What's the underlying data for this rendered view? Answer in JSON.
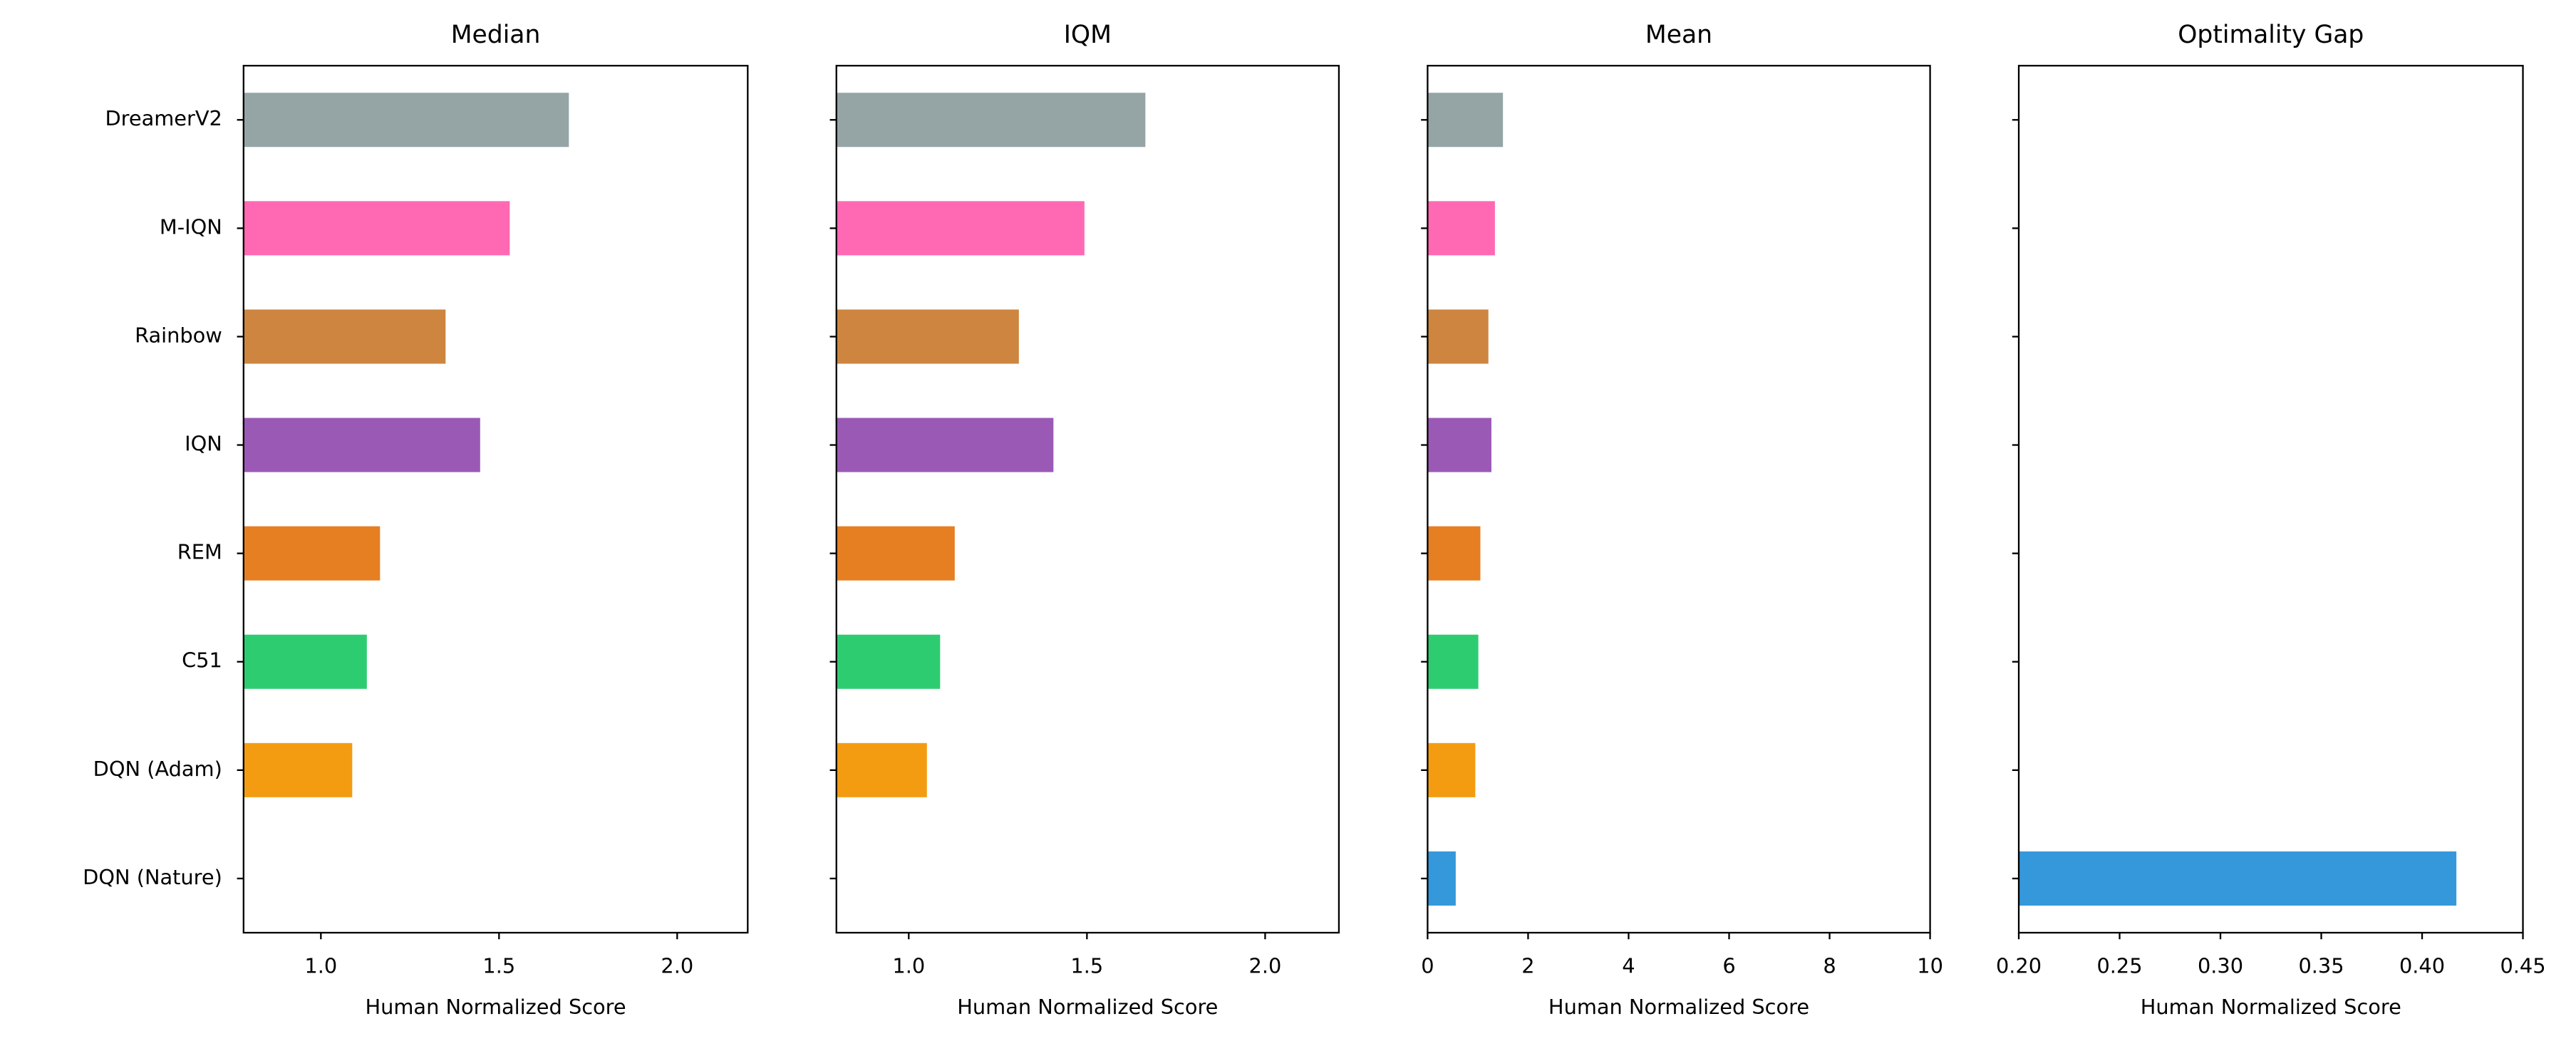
{
  "chart_data": [
    {
      "type": "bar",
      "orientation": "horizontal",
      "title": "Median",
      "xlabel": "Human Normalized Score",
      "categories": [
        "DreamerV2",
        "M-IQN",
        "Rainbow",
        "IQN",
        "REM",
        "C51",
        "DQN (Adam)",
        "DQN (Nature)"
      ],
      "values": [
        1.696,
        1.53,
        1.35,
        1.447,
        1.166,
        1.129,
        1.088,
        null
      ],
      "colors": [
        "#95a5a6",
        "#ff69b4",
        "#cd853f",
        "#9b59b6",
        "#e67e22",
        "#2ecc71",
        "#f39c12",
        "#3498db"
      ],
      "xlim": [
        0.783,
        2.198
      ],
      "xticks": [
        {
          "value": 1,
          "label": "1.0"
        },
        1.5,
        {
          "value": 2,
          "label": "2.0"
        }
      ]
    },
    {
      "type": "bar",
      "orientation": "horizontal",
      "title": "IQM",
      "xlabel": "Human Normalized Score",
      "values": [
        1.664,
        1.493,
        1.309,
        1.406,
        1.129,
        1.088,
        1.051,
        null
      ],
      "colors": [
        "#95a5a6",
        "#ff69b4",
        "#cd853f",
        "#9b59b6",
        "#e67e22",
        "#2ecc71",
        "#f39c12",
        "#3498db"
      ],
      "xlim": [
        0.797,
        2.207
      ],
      "xticks": [
        {
          "value": 1,
          "label": "1.0"
        },
        1.5,
        {
          "value": 2,
          "label": "2.0"
        }
      ]
    },
    {
      "type": "bar",
      "orientation": "horizontal",
      "title": "Mean",
      "xlabel": "Human Normalized Score",
      "values": [
        1.5,
        1.34,
        1.21,
        1.27,
        1.05,
        1.01,
        0.95,
        0.56
      ],
      "colors": [
        "#95a5a6",
        "#ff69b4",
        "#cd853f",
        "#9b59b6",
        "#e67e22",
        "#2ecc71",
        "#f39c12",
        "#3498db"
      ],
      "xlim": [
        0,
        10
      ],
      "xticks": [
        0,
        2,
        4,
        6,
        8,
        10
      ]
    },
    {
      "type": "bar",
      "orientation": "horizontal",
      "title": "Optimality Gap",
      "xlabel": "Human Normalized Score",
      "values": [
        null,
        null,
        null,
        null,
        null,
        null,
        null,
        0.417
      ],
      "colors": [
        "#95a5a6",
        "#ff69b4",
        "#cd853f",
        "#9b59b6",
        "#e67e22",
        "#2ecc71",
        "#f39c12",
        "#3498db"
      ],
      "xlim": [
        0.2,
        0.45
      ],
      "xticks": [
        {
          "value": 0.2,
          "label": "0.20"
        },
        0.25,
        {
          "value": 0.3,
          "label": "0.30"
        },
        0.35,
        {
          "value": 0.4,
          "label": "0.40"
        },
        0.45
      ]
    }
  ]
}
